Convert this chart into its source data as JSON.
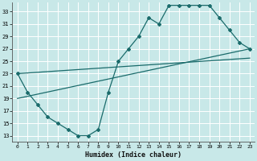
{
  "xlabel": "Humidex (Indice chaleur)",
  "bg_color": "#c8e8e8",
  "grid_color": "#ffffff",
  "line_color": "#1a6b6b",
  "xlim": [
    -0.5,
    23.5
  ],
  "ylim": [
    12,
    34.5
  ],
  "yticks": [
    13,
    15,
    17,
    19,
    21,
    23,
    25,
    27,
    29,
    31,
    33
  ],
  "xticks": [
    0,
    1,
    2,
    3,
    4,
    5,
    6,
    7,
    8,
    9,
    10,
    11,
    12,
    13,
    14,
    15,
    16,
    17,
    18,
    19,
    20,
    21,
    22,
    23
  ],
  "line1_x": [
    0,
    1,
    2,
    3,
    4,
    5,
    6,
    7,
    8,
    9,
    10,
    11,
    12,
    13,
    14,
    15,
    16,
    17,
    18,
    19,
    20,
    21,
    22,
    23
  ],
  "line1_y": [
    23,
    20,
    18,
    16,
    15,
    14,
    13,
    13,
    14,
    20,
    25,
    27,
    29,
    32,
    31,
    34,
    34,
    34,
    34,
    34,
    32,
    30,
    28,
    27
  ],
  "line2_x": [
    0,
    23
  ],
  "line2_y": [
    19,
    27
  ],
  "line3_x": [
    0,
    23
  ],
  "line3_y": [
    23,
    25.5
  ]
}
